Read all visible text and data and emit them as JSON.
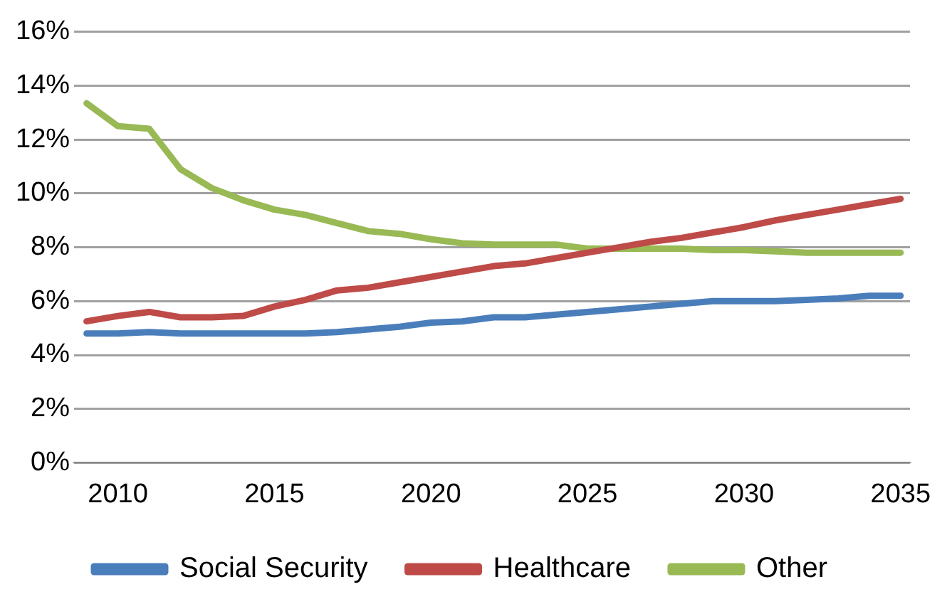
{
  "chart_data": {
    "type": "line",
    "x": [
      2009,
      2010,
      2011,
      2012,
      2013,
      2014,
      2015,
      2016,
      2017,
      2018,
      2019,
      2020,
      2021,
      2022,
      2023,
      2024,
      2025,
      2026,
      2027,
      2028,
      2029,
      2030,
      2031,
      2032,
      2033,
      2034,
      2035
    ],
    "xlim": [
      2008.6,
      2035.3
    ],
    "xticks": [
      2010,
      2015,
      2020,
      2025,
      2030,
      2035
    ],
    "ylim": [
      0,
      16
    ],
    "yticks": [
      {
        "value": 0,
        "label": "0%"
      },
      {
        "value": 2,
        "label": "2%"
      },
      {
        "value": 4,
        "label": "4%"
      },
      {
        "value": 6,
        "label": "6%"
      },
      {
        "value": 8,
        "label": "8%"
      },
      {
        "value": 10,
        "label": "10%"
      },
      {
        "value": 12,
        "label": "12%"
      },
      {
        "value": 14,
        "label": "14%"
      },
      {
        "value": 16,
        "label": "16%"
      }
    ],
    "grid": "y",
    "legend": "bottom",
    "marker": "none",
    "line_style": "solid",
    "series": [
      {
        "name": "Social Security",
        "color": "#4a7ebb",
        "values": [
          4.8,
          4.8,
          4.85,
          4.8,
          4.8,
          4.8,
          4.8,
          4.8,
          4.85,
          4.95,
          5.05,
          5.2,
          5.25,
          5.4,
          5.4,
          5.5,
          5.6,
          5.7,
          5.8,
          5.9,
          6.0,
          6.0,
          6.0,
          6.05,
          6.1,
          6.2,
          6.2
        ]
      },
      {
        "name": "Healthcare",
        "color": "#be4b48",
        "values": [
          5.25,
          5.45,
          5.6,
          5.4,
          5.4,
          5.45,
          5.8,
          6.05,
          6.4,
          6.5,
          6.7,
          6.9,
          7.1,
          7.3,
          7.4,
          7.6,
          7.8,
          8.0,
          8.2,
          8.35,
          8.55,
          8.75,
          9.0,
          9.2,
          9.4,
          9.6,
          9.8
        ]
      },
      {
        "name": "Other",
        "color": "#98b954",
        "values": [
          13.35,
          12.5,
          12.4,
          10.9,
          10.2,
          9.75,
          9.4,
          9.2,
          8.9,
          8.6,
          8.5,
          8.3,
          8.15,
          8.1,
          8.1,
          8.1,
          7.95,
          7.95,
          7.95,
          7.95,
          7.9,
          7.9,
          7.85,
          7.8,
          7.8,
          7.8,
          7.8
        ]
      }
    ]
  }
}
